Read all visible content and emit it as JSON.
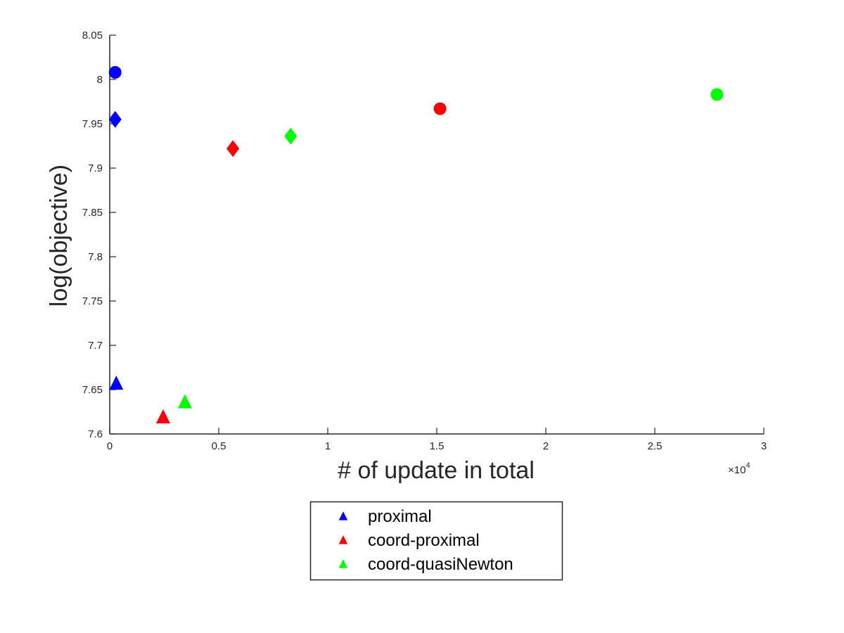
{
  "chart_data": {
    "type": "scatter",
    "title": "",
    "xlabel": "# of update in total",
    "ylabel": "log(objective)",
    "x_multiplier_label": "×10",
    "x_multiplier_exponent": "4",
    "xlim": [
      0,
      30000
    ],
    "ylim": [
      7.6,
      8.05
    ],
    "x_ticks": [
      0,
      5000,
      10000,
      15000,
      20000,
      25000,
      30000
    ],
    "x_tick_labels": [
      "0",
      "0.5",
      "1",
      "1.5",
      "2",
      "2.5",
      "3"
    ],
    "y_ticks": [
      7.6,
      7.65,
      7.7,
      7.75,
      7.8,
      7.85,
      7.9,
      7.95,
      8.0,
      8.05
    ],
    "y_tick_labels": [
      "7.6",
      "7.65",
      "7.7",
      "7.75",
      "7.8",
      "7.85",
      "7.9",
      "7.95",
      "8",
      "8.05"
    ],
    "grid": false,
    "legend_placement": "bottom-outside",
    "series": [
      {
        "name": "proximal",
        "color": "#0000ff",
        "points": [
          {
            "x": 300,
            "y": 7.657,
            "marker": "triangle"
          },
          {
            "x": 250,
            "y": 7.955,
            "marker": "diamond"
          },
          {
            "x": 250,
            "y": 8.008,
            "marker": "circle"
          }
        ]
      },
      {
        "name": "coord-proximal",
        "color": "#ff0000",
        "points": [
          {
            "x": 2450,
            "y": 7.619,
            "marker": "triangle"
          },
          {
            "x": 5650,
            "y": 7.922,
            "marker": "diamond"
          },
          {
            "x": 15150,
            "y": 7.967,
            "marker": "circle"
          }
        ]
      },
      {
        "name": "coord-quasiNewton",
        "color": "#00ff00",
        "points": [
          {
            "x": 3450,
            "y": 7.636,
            "marker": "triangle"
          },
          {
            "x": 8300,
            "y": 7.936,
            "marker": "diamond"
          },
          {
            "x": 27850,
            "y": 7.983,
            "marker": "circle"
          }
        ]
      }
    ]
  }
}
